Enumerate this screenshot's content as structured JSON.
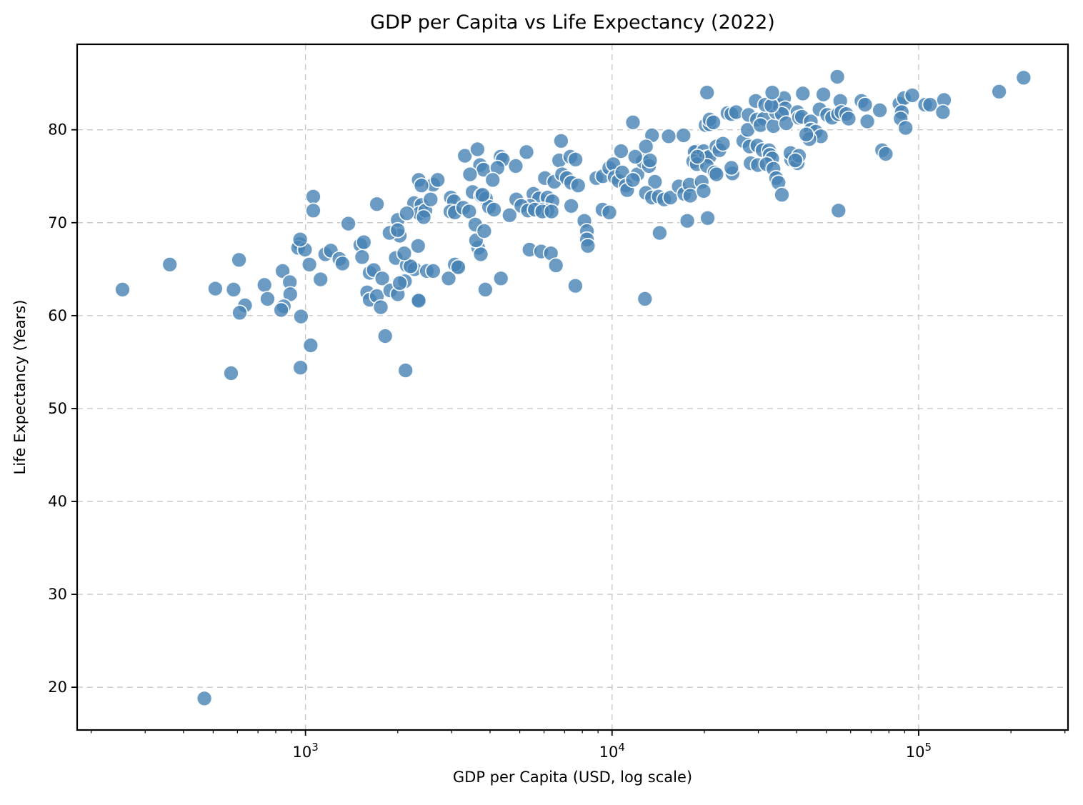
{
  "title": "GDP per Capita vs Life Expectancy (2022)",
  "chart_data": {
    "type": "scatter",
    "title": "GDP per Capita vs Life Expectancy (2022)",
    "xlabel": "GDP per Capita (USD, log scale)",
    "ylabel": "Life Expectancy (Years)",
    "x_scale": "log",
    "xlim": [
      180,
      307000
    ],
    "ylim": [
      15.4,
      89.2
    ],
    "x_major_ticks": [
      {
        "base": "10",
        "exp": "3",
        "value": 1000
      },
      {
        "base": "10",
        "exp": "4",
        "value": 10000
      },
      {
        "base": "10",
        "exp": "5",
        "value": 100000
      }
    ],
    "y_ticks": [
      20,
      30,
      40,
      50,
      60,
      70,
      80
    ],
    "grid": true,
    "grid_style": "dashed",
    "grid_color": "#c9c9c9",
    "marker_color": "#4682b4",
    "marker_alpha": 0.8,
    "marker_edge_color": "#ffffff",
    "marker_radius": 10.5,
    "points": [
      [
        253,
        62.8
      ],
      [
        361,
        65.5
      ],
      [
        607,
        66.0
      ],
      [
        508,
        62.9
      ],
      [
        583,
        62.8
      ],
      [
        635,
        61.1
      ],
      [
        610,
        60.3
      ],
      [
        735,
        63.3
      ],
      [
        752,
        61.8
      ],
      [
        842,
        64.8
      ],
      [
        889,
        63.6
      ],
      [
        892,
        62.3
      ],
      [
        850,
        61.0
      ],
      [
        833,
        60.6
      ],
      [
        958,
        67.7
      ],
      [
        946,
        67.3
      ],
      [
        996,
        67.1
      ],
      [
        961,
        68.2
      ],
      [
        1030,
        65.5
      ],
      [
        967,
        59.9
      ],
      [
        1120,
        63.9
      ],
      [
        1160,
        66.6
      ],
      [
        1210,
        67.0
      ],
      [
        1290,
        66.1
      ],
      [
        1320,
        65.6
      ],
      [
        1510,
        67.6
      ],
      [
        1550,
        67.9
      ],
      [
        1530,
        66.3
      ],
      [
        1620,
        64.6
      ],
      [
        1670,
        64.9
      ],
      [
        1590,
        62.5
      ],
      [
        1620,
        61.7
      ],
      [
        1710,
        62.1
      ],
      [
        1760,
        60.9
      ],
      [
        1780,
        64.0
      ],
      [
        1890,
        62.7
      ],
      [
        2000,
        62.3
      ],
      [
        1970,
        66.2
      ],
      [
        2110,
        63.7
      ],
      [
        2140,
        65.4
      ],
      [
        2270,
        65.0
      ],
      [
        2330,
        61.7
      ],
      [
        2490,
        64.8
      ],
      [
        1040,
        56.8
      ],
      [
        963,
        54.4
      ],
      [
        572,
        53.8
      ],
      [
        1820,
        57.8
      ],
      [
        2120,
        54.1
      ],
      [
        468,
        18.8
      ],
      [
        2330,
        67.5
      ],
      [
        2200,
        65.3
      ],
      [
        2100,
        66.7
      ],
      [
        2610,
        64.8
      ],
      [
        2030,
        63.5
      ],
      [
        2340,
        61.6
      ],
      [
        2930,
        64.0
      ],
      [
        3120,
        65.3
      ],
      [
        3070,
        65.5
      ],
      [
        3150,
        65.2
      ],
      [
        3660,
        67.3
      ],
      [
        3730,
        66.6
      ],
      [
        3860,
        62.8
      ],
      [
        4340,
        64.0
      ],
      [
        5380,
        67.1
      ],
      [
        5870,
        66.9
      ],
      [
        6320,
        66.7
      ],
      [
        6560,
        65.4
      ],
      [
        7590,
        63.2
      ],
      [
        12800,
        61.8
      ],
      [
        14300,
        68.9
      ],
      [
        3600,
        68.1
      ],
      [
        1060,
        72.8
      ],
      [
        1060,
        71.3
      ],
      [
        1380,
        69.9
      ],
      [
        1710,
        72.0
      ],
      [
        2000,
        70.3
      ],
      [
        2030,
        68.6
      ],
      [
        1880,
        68.9
      ],
      [
        2000,
        69.2
      ],
      [
        2260,
        72.1
      ],
      [
        2390,
        71.9
      ],
      [
        2350,
        71.0
      ],
      [
        2460,
        71.3
      ],
      [
        2430,
        70.6
      ],
      [
        2610,
        74.1
      ],
      [
        2700,
        74.6
      ],
      [
        2340,
        74.6
      ],
      [
        2390,
        74.0
      ],
      [
        2560,
        72.5
      ],
      [
        2140,
        71.0
      ],
      [
        2980,
        72.7
      ],
      [
        3050,
        72.3
      ],
      [
        2970,
        71.2
      ],
      [
        3070,
        71.1
      ],
      [
        3270,
        71.6
      ],
      [
        3420,
        71.2
      ],
      [
        3580,
        69.8
      ],
      [
        3830,
        69.1
      ],
      [
        3510,
        73.3
      ],
      [
        3740,
        72.9
      ],
      [
        3880,
        72.6
      ],
      [
        3310,
        77.2
      ],
      [
        3640,
        77.9
      ],
      [
        4330,
        77.1
      ],
      [
        4400,
        76.8
      ],
      [
        3710,
        76.2
      ],
      [
        3810,
        75.7
      ],
      [
        4230,
        75.9
      ],
      [
        4850,
        76.1
      ],
      [
        5260,
        77.6
      ],
      [
        3440,
        75.2
      ],
      [
        4080,
        74.6
      ],
      [
        6040,
        74.8
      ],
      [
        6480,
        74.4
      ],
      [
        6720,
        76.7
      ],
      [
        7310,
        77.1
      ],
      [
        7600,
        76.8
      ],
      [
        6870,
        75.2
      ],
      [
        7120,
        74.8
      ],
      [
        7360,
        74.3
      ],
      [
        7750,
        74.0
      ],
      [
        6820,
        78.8
      ],
      [
        8890,
        74.8
      ],
      [
        9330,
        75.0
      ],
      [
        9790,
        75.9
      ],
      [
        10100,
        76.3
      ],
      [
        10200,
        74.9
      ],
      [
        10500,
        74.5
      ],
      [
        10800,
        75.4
      ],
      [
        11100,
        74.0
      ],
      [
        11200,
        73.5
      ],
      [
        5540,
        73.1
      ],
      [
        5780,
        72.6
      ],
      [
        6160,
        72.7
      ],
      [
        6390,
        72.3
      ],
      [
        5930,
        71.4
      ],
      [
        6160,
        71.3
      ],
      [
        5400,
        71.8
      ],
      [
        4870,
        72.5
      ],
      [
        5060,
        71.8
      ],
      [
        5320,
        71.3
      ],
      [
        5600,
        71.4
      ],
      [
        5920,
        71.2
      ],
      [
        6350,
        71.2
      ],
      [
        4630,
        70.8
      ],
      [
        3970,
        71.7
      ],
      [
        4120,
        71.4
      ],
      [
        3780,
        73.0
      ],
      [
        7360,
        71.8
      ],
      [
        8120,
        70.2
      ],
      [
        8280,
        69.1
      ],
      [
        8280,
        68.2
      ],
      [
        8340,
        67.5
      ],
      [
        9310,
        71.4
      ],
      [
        9800,
        71.1
      ],
      [
        10700,
        77.7
      ],
      [
        11700,
        80.8
      ],
      [
        12100,
        75.2
      ],
      [
        11700,
        74.6
      ],
      [
        13500,
        79.4
      ],
      [
        15300,
        79.3
      ],
      [
        17100,
        79.4
      ],
      [
        12900,
        78.2
      ],
      [
        12600,
        76.6
      ],
      [
        11900,
        77.1
      ],
      [
        13200,
        76.1
      ],
      [
        13300,
        76.7
      ],
      [
        13800,
        74.4
      ],
      [
        12900,
        73.2
      ],
      [
        13500,
        72.7
      ],
      [
        14200,
        72.8
      ],
      [
        14800,
        72.5
      ],
      [
        15500,
        72.7
      ],
      [
        16500,
        73.9
      ],
      [
        17200,
        73.1
      ],
      [
        17900,
        74.1
      ],
      [
        18000,
        72.9
      ],
      [
        19600,
        74.4
      ],
      [
        19900,
        73.4
      ],
      [
        17600,
        70.2
      ],
      [
        20500,
        70.5
      ],
      [
        18900,
        77.7
      ],
      [
        18600,
        77.6
      ],
      [
        19200,
        77.2
      ],
      [
        19900,
        77.7
      ],
      [
        20200,
        77.0
      ],
      [
        20800,
        77.1
      ],
      [
        18400,
        76.6
      ],
      [
        18900,
        76.3
      ],
      [
        20400,
        76.1
      ],
      [
        21600,
        75.4
      ],
      [
        21900,
        75.2
      ],
      [
        24700,
        75.3
      ],
      [
        24500,
        75.9
      ],
      [
        28300,
        76.4
      ],
      [
        19000,
        77.1
      ],
      [
        20400,
        84.0
      ],
      [
        20200,
        80.5
      ],
      [
        20800,
        80.6
      ],
      [
        21900,
        78.2
      ],
      [
        22400,
        77.8
      ],
      [
        23000,
        78.5
      ],
      [
        23800,
        81.8
      ],
      [
        24500,
        81.7
      ],
      [
        25400,
        81.9
      ],
      [
        20800,
        81.1
      ],
      [
        21400,
        80.8
      ],
      [
        26800,
        78.8
      ],
      [
        28100,
        78.2
      ],
      [
        29800,
        78.3
      ],
      [
        31000,
        77.8
      ],
      [
        32500,
        77.8
      ],
      [
        27700,
        80.0
      ],
      [
        27900,
        81.6
      ],
      [
        29700,
        81.1
      ],
      [
        31300,
        81.2
      ],
      [
        30500,
        80.5
      ],
      [
        33600,
        80.4
      ],
      [
        34200,
        81.9
      ],
      [
        35100,
        82.6
      ],
      [
        36400,
        83.4
      ],
      [
        36700,
        82.3
      ],
      [
        35800,
        81.7
      ],
      [
        37000,
        80.7
      ],
      [
        29400,
        83.1
      ],
      [
        31600,
        82.7
      ],
      [
        33100,
        82.6
      ],
      [
        33300,
        84.0
      ],
      [
        41900,
        83.9
      ],
      [
        40300,
        81.9
      ],
      [
        40700,
        81.3
      ],
      [
        41600,
        81.4
      ],
      [
        44500,
        80.9
      ],
      [
        44500,
        80.0
      ],
      [
        46200,
        79.8
      ],
      [
        48000,
        79.3
      ],
      [
        44000,
        79.0
      ],
      [
        43000,
        79.5
      ],
      [
        48900,
        83.8
      ],
      [
        47500,
        82.2
      ],
      [
        50300,
        81.6
      ],
      [
        52200,
        81.3
      ],
      [
        54300,
        85.7
      ],
      [
        55500,
        83.1
      ],
      [
        54600,
        81.7
      ],
      [
        56000,
        81.9
      ],
      [
        58100,
        81.7
      ],
      [
        59100,
        81.2
      ],
      [
        38400,
        76.8
      ],
      [
        40300,
        76.4
      ],
      [
        32700,
        77.3
      ],
      [
        33300,
        76.9
      ],
      [
        29900,
        76.2
      ],
      [
        31900,
        76.3
      ],
      [
        33600,
        75.8
      ],
      [
        38200,
        77.5
      ],
      [
        40700,
        77.2
      ],
      [
        39600,
        76.7
      ],
      [
        34300,
        74.8
      ],
      [
        34900,
        74.3
      ],
      [
        35800,
        73.0
      ],
      [
        54800,
        71.3
      ],
      [
        65100,
        83.1
      ],
      [
        66900,
        82.7
      ],
      [
        68000,
        80.9
      ],
      [
        74700,
        82.1
      ],
      [
        76000,
        77.8
      ],
      [
        78100,
        77.4
      ],
      [
        86600,
        82.8
      ],
      [
        89600,
        83.4
      ],
      [
        88100,
        81.9
      ],
      [
        87400,
        81.2
      ],
      [
        90700,
        80.2
      ],
      [
        95300,
        83.7
      ],
      [
        105000,
        82.7
      ],
      [
        109000,
        82.7
      ],
      [
        121000,
        83.2
      ],
      [
        120000,
        81.9
      ],
      [
        183000,
        84.1
      ],
      [
        220000,
        85.6
      ]
    ]
  }
}
